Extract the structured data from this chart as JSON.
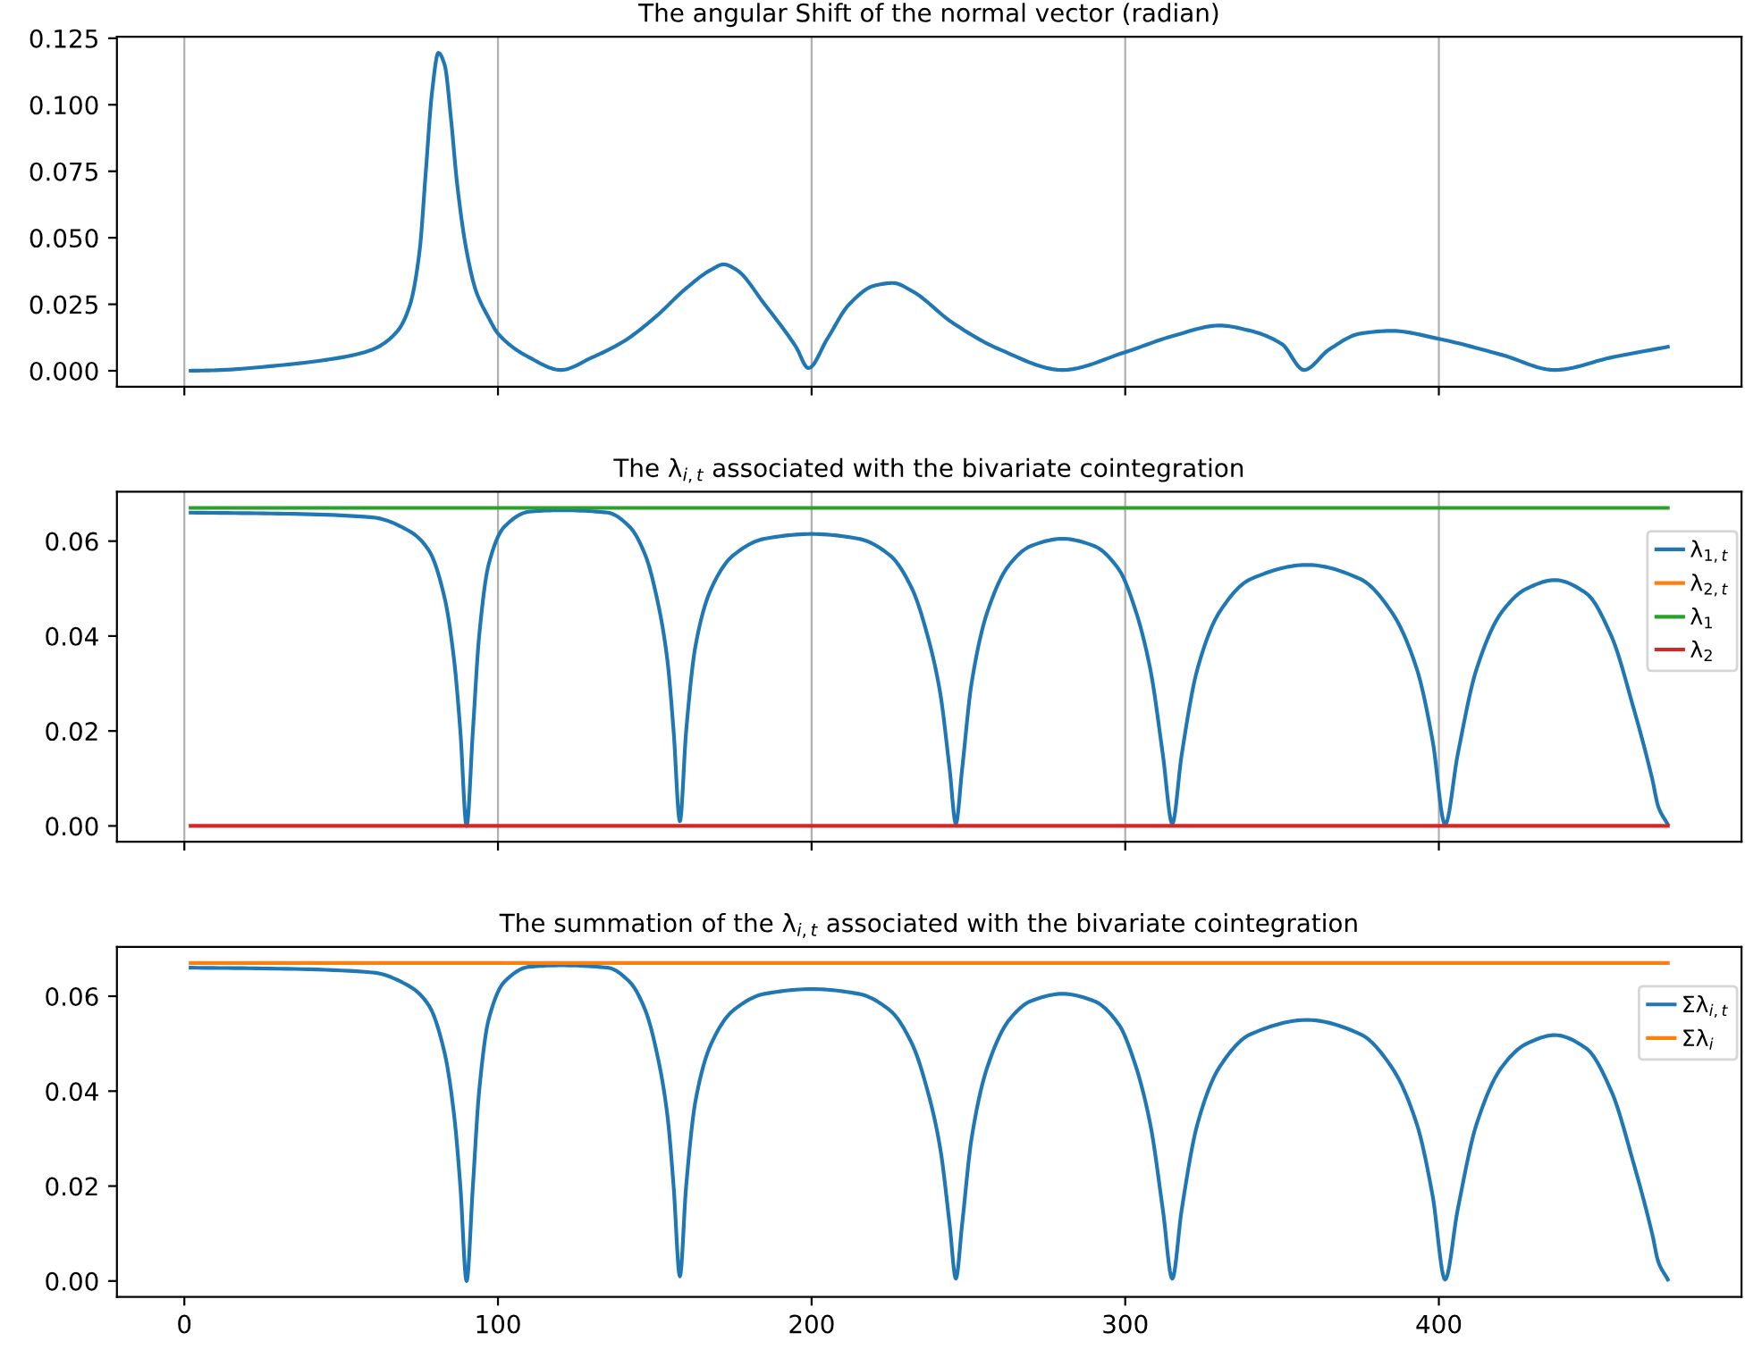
{
  "chart_data": [
    {
      "type": "line",
      "title": "The angular Shift of the normal vector (radian)",
      "xlim": [
        -21.5,
        496.5
      ],
      "xticks": [
        0,
        100,
        200,
        300,
        400
      ],
      "ylim": [
        -0.006,
        0.1256
      ],
      "yticks": [
        {
          "value": 0,
          "label": "0.000"
        },
        {
          "value": 0.025,
          "label": "0.025"
        },
        {
          "value": 0.05,
          "label": "0.050"
        },
        {
          "value": 0.075,
          "label": "0.075"
        },
        {
          "value": 0.1,
          "label": "0.100"
        },
        {
          "value": 0.125,
          "label": "0.125"
        }
      ],
      "grid": "x",
      "tick_labels": "y",
      "legend": false,
      "series": [
        {
          "color": "#1f77b4",
          "x": [
            2,
            10,
            30,
            50,
            60,
            68,
            72,
            75,
            77,
            79,
            81,
            83,
            85,
            87,
            90,
            93,
            97,
            100,
            110,
            120,
            130,
            140,
            150,
            160,
            168,
            172,
            176,
            185,
            195,
            199,
            205,
            212,
            220,
            226,
            232,
            245,
            260,
            280,
            300,
            315,
            330,
            340,
            350,
            357,
            365,
            375,
            385,
            400,
            420,
            437,
            455,
            473
          ],
          "values": [
            0,
            0.0002,
            0.002,
            0.005,
            0.008,
            0.015,
            0.025,
            0.045,
            0.075,
            0.105,
            0.1195,
            0.115,
            0.095,
            0.07,
            0.045,
            0.03,
            0.02,
            0.014,
            0.005,
            0.0003,
            0.005,
            0.011,
            0.02,
            0.031,
            0.038,
            0.04,
            0.038,
            0.025,
            0.009,
            0.001,
            0.012,
            0.025,
            0.032,
            0.033,
            0.03,
            0.018,
            0.008,
            0.0003,
            0.007,
            0.013,
            0.017,
            0.015,
            0.01,
            0.0003,
            0.008,
            0.014,
            0.015,
            0.012,
            0.006,
            0.0003,
            0.005,
            0.009
          ]
        }
      ]
    },
    {
      "type": "line",
      "title": "The λ$_{i,t}$ associated with the bivariate cointegration",
      "xlim": [
        -21.5,
        496.5
      ],
      "xticks": [
        0,
        100,
        200,
        300,
        400
      ],
      "ylim": [
        -0.00335,
        0.0704
      ],
      "yticks": [
        {
          "value": 0,
          "label": "0.00"
        },
        {
          "value": 0.02,
          "label": "0.02"
        },
        {
          "value": 0.04,
          "label": "0.04"
        },
        {
          "value": 0.06,
          "label": "0.06"
        }
      ],
      "grid": "x",
      "tick_labels": "y",
      "legend": "top right",
      "series": [
        {
          "name": "λ$_{1,t}$",
          "color": "#1f77b4",
          "x": [
            2,
            30,
            60,
            72,
            78,
            83,
            86,
            88,
            90,
            92,
            94,
            97,
            102,
            110,
            120,
            135,
            142,
            147,
            151,
            154,
            156,
            158,
            160,
            163,
            168,
            175,
            185,
            200,
            215,
            225,
            232,
            237,
            241,
            244,
            246,
            248,
            251,
            256,
            263,
            270,
            280,
            290,
            298,
            303,
            308,
            312,
            315,
            318,
            323,
            330,
            340,
            358,
            375,
            385,
            393,
            398,
            402,
            406,
            412,
            420,
            428,
            437,
            447,
            455,
            462,
            468,
            470,
            473
          ],
          "values": [
            0.066,
            0.0658,
            0.065,
            0.062,
            0.058,
            0.048,
            0.035,
            0.02,
            0,
            0.02,
            0.04,
            0.055,
            0.063,
            0.0662,
            0.0665,
            0.066,
            0.063,
            0.057,
            0.047,
            0.035,
            0.02,
            0.001,
            0.02,
            0.038,
            0.05,
            0.057,
            0.0605,
            0.0615,
            0.0605,
            0.057,
            0.05,
            0.04,
            0.028,
            0.012,
            0.0005,
            0.012,
            0.03,
            0.045,
            0.055,
            0.059,
            0.0605,
            0.059,
            0.054,
            0.046,
            0.033,
            0.015,
            0.0005,
            0.015,
            0.033,
            0.045,
            0.052,
            0.055,
            0.052,
            0.045,
            0.033,
            0.018,
            0.0003,
            0.015,
            0.033,
            0.045,
            0.05,
            0.0518,
            0.049,
            0.04,
            0.025,
            0.01,
            0.004,
            0.0003
          ]
        },
        {
          "name": "λ$_{2,t}$",
          "color": "#ff7f0e",
          "values": [
            null,
            null
          ]
        },
        {
          "name": "λ$_{1}$",
          "color": "#2ca02c",
          "x": [
            2,
            473
          ],
          "values": [
            0.067,
            0.067
          ]
        },
        {
          "name": "λ$_{2}$",
          "color": "#d62728",
          "x": [
            2,
            473
          ],
          "values": [
            0,
            0
          ]
        }
      ]
    },
    {
      "type": "line",
      "title": "The summation of the λ$_{i,t}$ associated with the bivariate cointegration",
      "xlim": [
        -21.5,
        496.5
      ],
      "xticks": [
        0,
        100,
        200,
        300,
        400
      ],
      "ylim": [
        -0.00335,
        0.0704
      ],
      "yticks": [
        {
          "value": 0,
          "label": "0.00"
        },
        {
          "value": 0.02,
          "label": "0.02"
        },
        {
          "value": 0.04,
          "label": "0.04"
        },
        {
          "value": 0.06,
          "label": "0.06"
        }
      ],
      "legend": "top right",
      "series": [
        {
          "name": "Σλ$_{i,t}$",
          "color": "#1f77b4",
          "x": [
            2,
            30,
            60,
            72,
            78,
            83,
            86,
            88,
            90,
            92,
            94,
            97,
            102,
            110,
            120,
            135,
            142,
            147,
            151,
            154,
            156,
            158,
            160,
            163,
            168,
            175,
            185,
            200,
            215,
            225,
            232,
            237,
            241,
            244,
            246,
            248,
            251,
            256,
            263,
            270,
            280,
            290,
            298,
            303,
            308,
            312,
            315,
            318,
            323,
            330,
            340,
            358,
            375,
            385,
            393,
            398,
            402,
            406,
            412,
            420,
            428,
            437,
            447,
            455,
            462,
            468,
            470,
            473
          ],
          "values": [
            0.066,
            0.0658,
            0.065,
            0.062,
            0.058,
            0.048,
            0.035,
            0.02,
            0,
            0.02,
            0.04,
            0.055,
            0.063,
            0.0662,
            0.0665,
            0.066,
            0.063,
            0.057,
            0.047,
            0.035,
            0.02,
            0.001,
            0.02,
            0.038,
            0.05,
            0.057,
            0.0605,
            0.0615,
            0.0605,
            0.057,
            0.05,
            0.04,
            0.028,
            0.012,
            0.0005,
            0.012,
            0.03,
            0.045,
            0.055,
            0.059,
            0.0605,
            0.059,
            0.054,
            0.046,
            0.033,
            0.015,
            0.0005,
            0.015,
            0.033,
            0.045,
            0.052,
            0.055,
            0.052,
            0.045,
            0.033,
            0.018,
            0.0003,
            0.015,
            0.033,
            0.045,
            0.05,
            0.0518,
            0.049,
            0.04,
            0.025,
            0.01,
            0.004,
            0.0003
          ]
        },
        {
          "name": "Σλ$_{i}$",
          "color": "#ff7f0e",
          "x": [
            2,
            473
          ],
          "values": [
            0.067,
            0.067
          ]
        }
      ]
    }
  ]
}
